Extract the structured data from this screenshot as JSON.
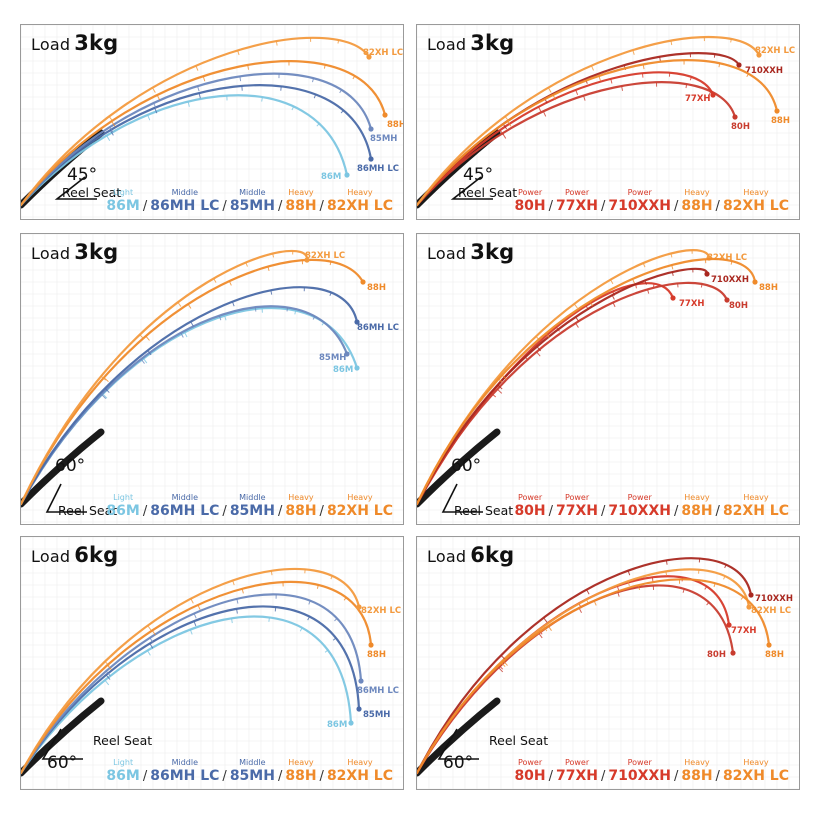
{
  "colors": {
    "light": "#7cc6e2",
    "middle_a": "#4a6aa8",
    "middle_b": "#6d88be",
    "heavy": "#ef8a2a",
    "heavy_b": "#f39a3e",
    "power_a": "#d63a2a",
    "power_b": "#a9271f",
    "power_c": "#c83c2f",
    "butt": "#1a1a1a"
  },
  "reel_seat_label": "Reel Seat",
  "panels": [
    {
      "id": "p1",
      "load_label": "Load",
      "load_value": "3kg",
      "angle": "45°",
      "legend": [
        {
          "cls": "Light",
          "name": "86M",
          "color": "#7cc6e2"
        },
        {
          "cls": "Middle",
          "name": "86MH LC",
          "color": "#4a6aa8"
        },
        {
          "cls": "Middle",
          "name": "85MH",
          "color": "#4a6aa8"
        },
        {
          "cls": "Heavy",
          "name": "88H",
          "color": "#ef8a2a"
        },
        {
          "cls": "Heavy",
          "name": "82XH LC",
          "color": "#ef8a2a"
        }
      ],
      "rods": [
        {
          "name": "86M",
          "label": "86M",
          "color": "#7cc6e2"
        },
        {
          "name": "86MH LC",
          "label": "86MH LC",
          "color": "#4a6aa8"
        },
        {
          "name": "85MH",
          "label": "85MH",
          "color": "#6d88be"
        },
        {
          "name": "88H",
          "label": "88H",
          "color": "#ef8a2a"
        },
        {
          "name": "82XH LC",
          "label": "82XH LC",
          "color": "#f39a3e"
        }
      ]
    },
    {
      "id": "p2",
      "load_label": "Load",
      "load_value": "3kg",
      "angle": "45°",
      "legend": [
        {
          "cls": "Power",
          "name": "80H",
          "color": "#d63a2a"
        },
        {
          "cls": "Power",
          "name": "77XH",
          "color": "#d63a2a"
        },
        {
          "cls": "Power",
          "name": "710XXH",
          "color": "#d63a2a"
        },
        {
          "cls": "Heavy",
          "name": "88H",
          "color": "#ef8a2a"
        },
        {
          "cls": "Heavy",
          "name": "82XH LC",
          "color": "#ef8a2a"
        }
      ],
      "rods": [
        {
          "name": "80H",
          "label": "80H",
          "color": "#c83c2f"
        },
        {
          "name": "77XH",
          "label": "77XH",
          "color": "#d63a2a"
        },
        {
          "name": "710XXH",
          "label": "710XXH",
          "color": "#a9271f"
        },
        {
          "name": "88H",
          "label": "88H",
          "color": "#ef8a2a"
        },
        {
          "name": "82XH LC",
          "label": "82XH LC",
          "color": "#f39a3e"
        }
      ]
    },
    {
      "id": "p3",
      "load_label": "Load",
      "load_value": "3kg",
      "angle": "60°",
      "legend": [
        {
          "cls": "Light",
          "name": "86M",
          "color": "#7cc6e2"
        },
        {
          "cls": "Middle",
          "name": "86MH LC",
          "color": "#4a6aa8"
        },
        {
          "cls": "Middle",
          "name": "85MH",
          "color": "#4a6aa8"
        },
        {
          "cls": "Heavy",
          "name": "88H",
          "color": "#ef8a2a"
        },
        {
          "cls": "Heavy",
          "name": "82XH LC",
          "color": "#ef8a2a"
        }
      ],
      "rods": [
        {
          "name": "86M",
          "label": "86M",
          "color": "#7cc6e2"
        },
        {
          "name": "85MH",
          "label": "85MH",
          "color": "#6d88be"
        },
        {
          "name": "86MH LC",
          "label": "86MH LC",
          "color": "#4a6aa8"
        },
        {
          "name": "88H",
          "label": "88H",
          "color": "#ef8a2a"
        },
        {
          "name": "82XH LC",
          "label": "82XH LC",
          "color": "#f39a3e"
        }
      ]
    },
    {
      "id": "p4",
      "load_label": "Load",
      "load_value": "3kg",
      "angle": "60°",
      "legend": [
        {
          "cls": "Power",
          "name": "80H",
          "color": "#d63a2a"
        },
        {
          "cls": "Power",
          "name": "77XH",
          "color": "#d63a2a"
        },
        {
          "cls": "Power",
          "name": "710XXH",
          "color": "#d63a2a"
        },
        {
          "cls": "Heavy",
          "name": "88H",
          "color": "#ef8a2a"
        },
        {
          "cls": "Heavy",
          "name": "82XH LC",
          "color": "#ef8a2a"
        }
      ],
      "rods": [
        {
          "name": "77XH",
          "label": "77XH",
          "color": "#d63a2a"
        },
        {
          "name": "80H",
          "label": "80H",
          "color": "#c83c2f"
        },
        {
          "name": "710XXH",
          "label": "710XXH",
          "color": "#a9271f"
        },
        {
          "name": "82XH LC",
          "label": "82XH LC",
          "color": "#f39a3e"
        },
        {
          "name": "88H",
          "label": "88H",
          "color": "#ef8a2a"
        }
      ]
    },
    {
      "id": "p5",
      "load_label": "Load",
      "load_value": "6kg",
      "angle": "60°",
      "legend": [
        {
          "cls": "Light",
          "name": "86M",
          "color": "#7cc6e2"
        },
        {
          "cls": "Middle",
          "name": "86MH LC",
          "color": "#4a6aa8"
        },
        {
          "cls": "Middle",
          "name": "85MH",
          "color": "#4a6aa8"
        },
        {
          "cls": "Heavy",
          "name": "88H",
          "color": "#ef8a2a"
        },
        {
          "cls": "Heavy",
          "name": "82XH LC",
          "color": "#ef8a2a"
        }
      ],
      "rods": [
        {
          "name": "86M",
          "label": "86M",
          "color": "#7cc6e2"
        },
        {
          "name": "85MH",
          "label": "85MH",
          "color": "#4a6aa8"
        },
        {
          "name": "86MH LC",
          "label": "86MH LC",
          "color": "#6d88be"
        },
        {
          "name": "88H",
          "label": "88H",
          "color": "#ef8a2a"
        },
        {
          "name": "82XH LC",
          "label": "82XH LC",
          "color": "#f39a3e"
        }
      ]
    },
    {
      "id": "p6",
      "load_label": "Load",
      "load_value": "6kg",
      "angle": "60°",
      "legend": [
        {
          "cls": "Power",
          "name": "80H",
          "color": "#d63a2a"
        },
        {
          "cls": "Power",
          "name": "77XH",
          "color": "#d63a2a"
        },
        {
          "cls": "Power",
          "name": "710XXH",
          "color": "#d63a2a"
        },
        {
          "cls": "Heavy",
          "name": "88H",
          "color": "#ef8a2a"
        },
        {
          "cls": "Heavy",
          "name": "82XH LC",
          "color": "#ef8a2a"
        }
      ],
      "rods": [
        {
          "name": "80H",
          "label": "80H",
          "color": "#c83c2f"
        },
        {
          "name": "77XH",
          "label": "77XH",
          "color": "#d63a2a"
        },
        {
          "name": "82XH LC",
          "label": "82XH LC",
          "color": "#f39a3e"
        },
        {
          "name": "710XXH",
          "label": "710XXH",
          "color": "#a9271f"
        },
        {
          "name": "88H",
          "label": "88H",
          "color": "#ef8a2a"
        }
      ]
    }
  ]
}
